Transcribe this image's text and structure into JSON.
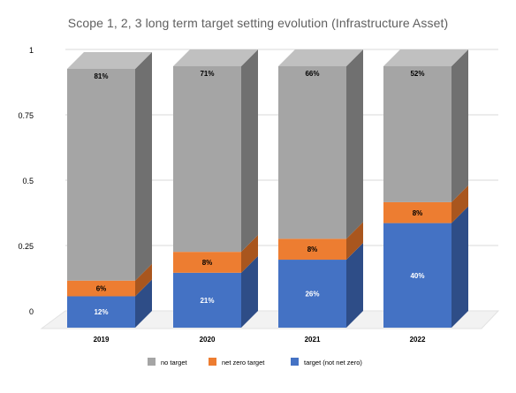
{
  "chart_data": {
    "type": "bar",
    "stacked": true,
    "three_d": true,
    "title": "Scope 1, 2, 3 long term target setting evolution (Infrastructure Asset)",
    "categories": [
      "2019",
      "2020",
      "2021",
      "2022"
    ],
    "ylim": [
      0,
      1
    ],
    "yticks": [
      0,
      0.25,
      0.5,
      0.75,
      1
    ],
    "ytick_labels": [
      "0",
      "0.25",
      "0.5",
      "0.75",
      "1"
    ],
    "grid": true,
    "legend_position": "bottom",
    "series": [
      {
        "name": "target (not net zero)",
        "values": [
          0.12,
          0.21,
          0.26,
          0.4
        ],
        "labels": [
          "12%",
          "21%",
          "26%",
          "40%"
        ],
        "color": "#4472c4",
        "side_color": "#2e4d87",
        "label_color": "#ffffff"
      },
      {
        "name": "net zero target",
        "values": [
          0.06,
          0.08,
          0.08,
          0.08
        ],
        "labels": [
          "6%",
          "8%",
          "8%",
          "8%"
        ],
        "color": "#ed7d31",
        "side_color": "#a9561e",
        "label_color": "#000000"
      },
      {
        "name": "no target",
        "values": [
          0.81,
          0.71,
          0.66,
          0.52
        ],
        "labels": [
          "81%",
          "71%",
          "66%",
          "52%"
        ],
        "color": "#a5a5a5",
        "side_color": "#707070",
        "label_color": "#000000"
      }
    ],
    "legend_order": [
      "no target",
      "net zero target",
      "target (not net zero)"
    ]
  }
}
